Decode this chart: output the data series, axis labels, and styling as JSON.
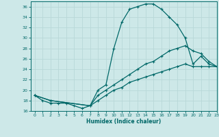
{
  "xlabel": "Humidex (Indice chaleur)",
  "bg_color": "#cde8e8",
  "grid_color": "#b8d8d8",
  "line_color": "#006868",
  "xlim": [
    -0.5,
    23
  ],
  "ylim": [
    16,
    37
  ],
  "xticks": [
    0,
    1,
    2,
    3,
    4,
    5,
    6,
    7,
    8,
    9,
    10,
    11,
    12,
    13,
    14,
    15,
    16,
    17,
    18,
    19,
    20,
    21,
    22,
    23
  ],
  "yticks": [
    16,
    18,
    20,
    22,
    24,
    26,
    28,
    30,
    32,
    34,
    36
  ],
  "line1_x": [
    0,
    1,
    2,
    3,
    4,
    5,
    6,
    7,
    8,
    9,
    10,
    11,
    12,
    13,
    14,
    15,
    16,
    17,
    18,
    19,
    20,
    21,
    22,
    23
  ],
  "line1_y": [
    19,
    18,
    17.5,
    17.5,
    17.5,
    17,
    16.5,
    17,
    20,
    21,
    28,
    33,
    35.5,
    36,
    36.5,
    36.5,
    35.5,
    34,
    32.5,
    30,
    25,
    26.5,
    25,
    24.5
  ],
  "line2_x": [
    0,
    2,
    7,
    8,
    9,
    10,
    11,
    12,
    13,
    14,
    15,
    16,
    17,
    18,
    19,
    20,
    21,
    22,
    23
  ],
  "line2_y": [
    19,
    18,
    17,
    19,
    20,
    21,
    22,
    23,
    24,
    25,
    25.5,
    26.5,
    27.5,
    28,
    28.5,
    27.5,
    27,
    25.5,
    24.5
  ],
  "line3_x": [
    0,
    2,
    7,
    8,
    9,
    10,
    11,
    12,
    13,
    14,
    15,
    16,
    17,
    18,
    19,
    20,
    21,
    22,
    23
  ],
  "line3_y": [
    19,
    18,
    17,
    18,
    19,
    20,
    20.5,
    21.5,
    22,
    22.5,
    23,
    23.5,
    24,
    24.5,
    25,
    24.5,
    24.5,
    24.5,
    24.5
  ],
  "marker1_x": [
    0,
    1,
    2,
    3,
    4,
    5,
    6,
    7,
    10,
    11,
    12,
    13,
    14,
    15,
    16,
    17,
    18,
    19,
    20,
    21,
    22,
    23
  ],
  "marker1_y": [
    19,
    18,
    17.5,
    17.5,
    17.5,
    17,
    16.5,
    17,
    28,
    33,
    35.5,
    36,
    36.5,
    36.5,
    35.5,
    34,
    32.5,
    30,
    25,
    26.5,
    25,
    24.5
  ],
  "marker2_x": [
    0,
    7,
    8,
    9,
    10,
    11,
    12,
    13,
    14,
    15,
    16,
    17,
    18,
    19,
    20,
    21,
    22,
    23
  ],
  "marker2_y": [
    19,
    17,
    19,
    20,
    21,
    22,
    23,
    24,
    25,
    25.5,
    26.5,
    27.5,
    28,
    28.5,
    27.5,
    27,
    25.5,
    24.5
  ],
  "marker3_x": [
    0,
    7,
    8,
    9,
    10,
    11,
    12,
    13,
    14,
    15,
    16,
    17,
    18,
    19,
    20,
    21,
    22,
    23
  ],
  "marker3_y": [
    19,
    17,
    18,
    19,
    20,
    20.5,
    21.5,
    22,
    22.5,
    23,
    23.5,
    24,
    24.5,
    25,
    24.5,
    24.5,
    24.5,
    24.5
  ]
}
